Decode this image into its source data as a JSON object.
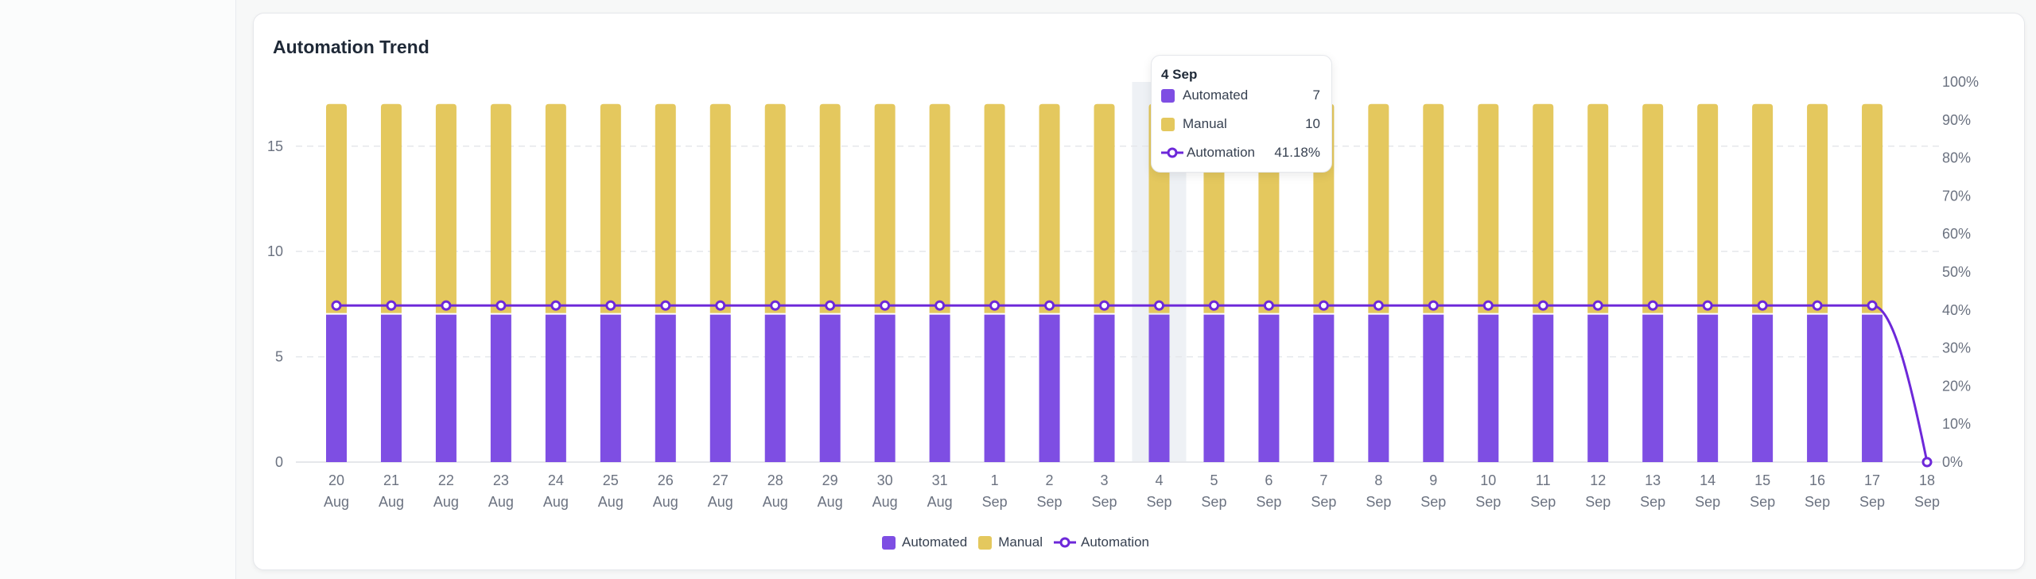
{
  "title": "Automation Trend",
  "colors": {
    "automated": "#7e4ee3",
    "manual": "#e4c85e",
    "automation_line": "#6d28d9",
    "highlight": "#eef1f5"
  },
  "tooltip": {
    "date": "4 Sep",
    "rows": [
      {
        "label": "Automated",
        "value": "7",
        "icon": "square-swatch"
      },
      {
        "label": "Manual",
        "value": "10",
        "icon": "square-swatch"
      },
      {
        "label": "Automation",
        "value": "41.18%",
        "icon": "line-marker"
      }
    ]
  },
  "legend": [
    {
      "label": "Automated",
      "icon": "square-swatch"
    },
    {
      "label": "Manual",
      "icon": "square-swatch"
    },
    {
      "label": "Automation",
      "icon": "line-marker"
    }
  ],
  "chart_data": {
    "type": "bar",
    "stacked": true,
    "title": "Automation Trend",
    "categories": [
      [
        "20",
        "Aug"
      ],
      [
        "21",
        "Aug"
      ],
      [
        "22",
        "Aug"
      ],
      [
        "23",
        "Aug"
      ],
      [
        "24",
        "Aug"
      ],
      [
        "25",
        "Aug"
      ],
      [
        "26",
        "Aug"
      ],
      [
        "27",
        "Aug"
      ],
      [
        "28",
        "Aug"
      ],
      [
        "29",
        "Aug"
      ],
      [
        "30",
        "Aug"
      ],
      [
        "31",
        "Aug"
      ],
      [
        "1",
        "Sep"
      ],
      [
        "2",
        "Sep"
      ],
      [
        "3",
        "Sep"
      ],
      [
        "4",
        "Sep"
      ],
      [
        "5",
        "Sep"
      ],
      [
        "6",
        "Sep"
      ],
      [
        "7",
        "Sep"
      ],
      [
        "8",
        "Sep"
      ],
      [
        "9",
        "Sep"
      ],
      [
        "10",
        "Sep"
      ],
      [
        "11",
        "Sep"
      ],
      [
        "12",
        "Sep"
      ],
      [
        "13",
        "Sep"
      ],
      [
        "14",
        "Sep"
      ],
      [
        "15",
        "Sep"
      ],
      [
        "16",
        "Sep"
      ],
      [
        "17",
        "Sep"
      ],
      [
        "18",
        "Sep"
      ]
    ],
    "series": [
      {
        "name": "Automated",
        "type": "bar",
        "axis": "left",
        "values": [
          7,
          7,
          7,
          7,
          7,
          7,
          7,
          7,
          7,
          7,
          7,
          7,
          7,
          7,
          7,
          7,
          7,
          7,
          7,
          7,
          7,
          7,
          7,
          7,
          7,
          7,
          7,
          7,
          7,
          0
        ]
      },
      {
        "name": "Manual",
        "type": "bar",
        "axis": "left",
        "values": [
          10,
          10,
          10,
          10,
          10,
          10,
          10,
          10,
          10,
          10,
          10,
          10,
          10,
          10,
          10,
          10,
          10,
          10,
          10,
          10,
          10,
          10,
          10,
          10,
          10,
          10,
          10,
          10,
          10,
          0
        ]
      },
      {
        "name": "Automation",
        "type": "line",
        "axis": "right",
        "unit": "%",
        "values": [
          41.18,
          41.18,
          41.18,
          41.18,
          41.18,
          41.18,
          41.18,
          41.18,
          41.18,
          41.18,
          41.18,
          41.18,
          41.18,
          41.18,
          41.18,
          41.18,
          41.18,
          41.18,
          41.18,
          41.18,
          41.18,
          41.18,
          41.18,
          41.18,
          41.18,
          41.18,
          41.18,
          41.18,
          41.18,
          0
        ]
      }
    ],
    "y_left": {
      "range": [
        0,
        18.05
      ],
      "ticks": [
        "0",
        "5",
        "10",
        "15"
      ]
    },
    "y_right": {
      "range": [
        0,
        100
      ],
      "ticks": [
        "0%",
        "10%",
        "20%",
        "30%",
        "40%",
        "50%",
        "60%",
        "70%",
        "80%",
        "90%",
        "100%"
      ]
    },
    "grid": "horizontal dashed",
    "legend_position": "bottom",
    "highlighted_category": "4 Sep"
  }
}
